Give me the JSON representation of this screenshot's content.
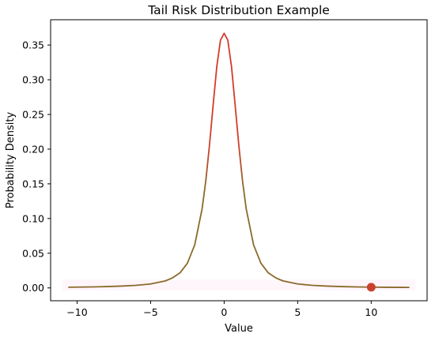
{
  "chart_data": {
    "type": "line",
    "title": "Tail Risk Distribution Example",
    "xlabel": "Value",
    "ylabel": "Probability Density",
    "xlim": [
      -11.8,
      13.8
    ],
    "ylim": [
      -0.0185,
      0.3865
    ],
    "xticks": [
      -10,
      -5,
      0,
      5,
      10
    ],
    "xtick_labels": [
      "−10",
      "−5",
      "0",
      "5",
      "10"
    ],
    "yticks": [
      0.0,
      0.05,
      0.1,
      0.15,
      0.2,
      0.25,
      0.3,
      0.35
    ],
    "ytick_labels": [
      "0.00",
      "0.05",
      "0.10",
      "0.15",
      "0.20",
      "0.25",
      "0.30",
      "0.35"
    ],
    "grid": false,
    "legend": "none",
    "series": [
      {
        "x": [
          -10.6,
          -9,
          -8,
          -7,
          -6,
          -5,
          -4,
          -3.5,
          -3,
          -2.5,
          -2,
          -1.5,
          -1.25,
          -1,
          -0.75,
          -0.5,
          -0.25,
          0,
          0.25,
          0.5,
          0.75,
          1,
          1.25,
          1.5,
          2,
          2.5,
          3,
          3.5,
          4,
          5,
          6,
          7,
          8,
          9,
          10,
          11,
          12.6
        ],
        "y": [
          0.001,
          0.0014,
          0.0019,
          0.0026,
          0.0037,
          0.0057,
          0.0101,
          0.0146,
          0.0217,
          0.0356,
          0.0621,
          0.114,
          0.154,
          0.205,
          0.263,
          0.319,
          0.357,
          0.367,
          0.357,
          0.319,
          0.263,
          0.205,
          0.154,
          0.114,
          0.0621,
          0.0356,
          0.0217,
          0.0146,
          0.0101,
          0.0057,
          0.0037,
          0.0026,
          0.0019,
          0.0014,
          0.0011,
          0.0009,
          0.0007
        ],
        "colors": {
          "peak": "#d63a2a",
          "tail": "#8a6a2a"
        }
      }
    ],
    "markers": [
      {
        "x": 10,
        "y": 0.001,
        "color": "#c9422e"
      }
    ]
  }
}
